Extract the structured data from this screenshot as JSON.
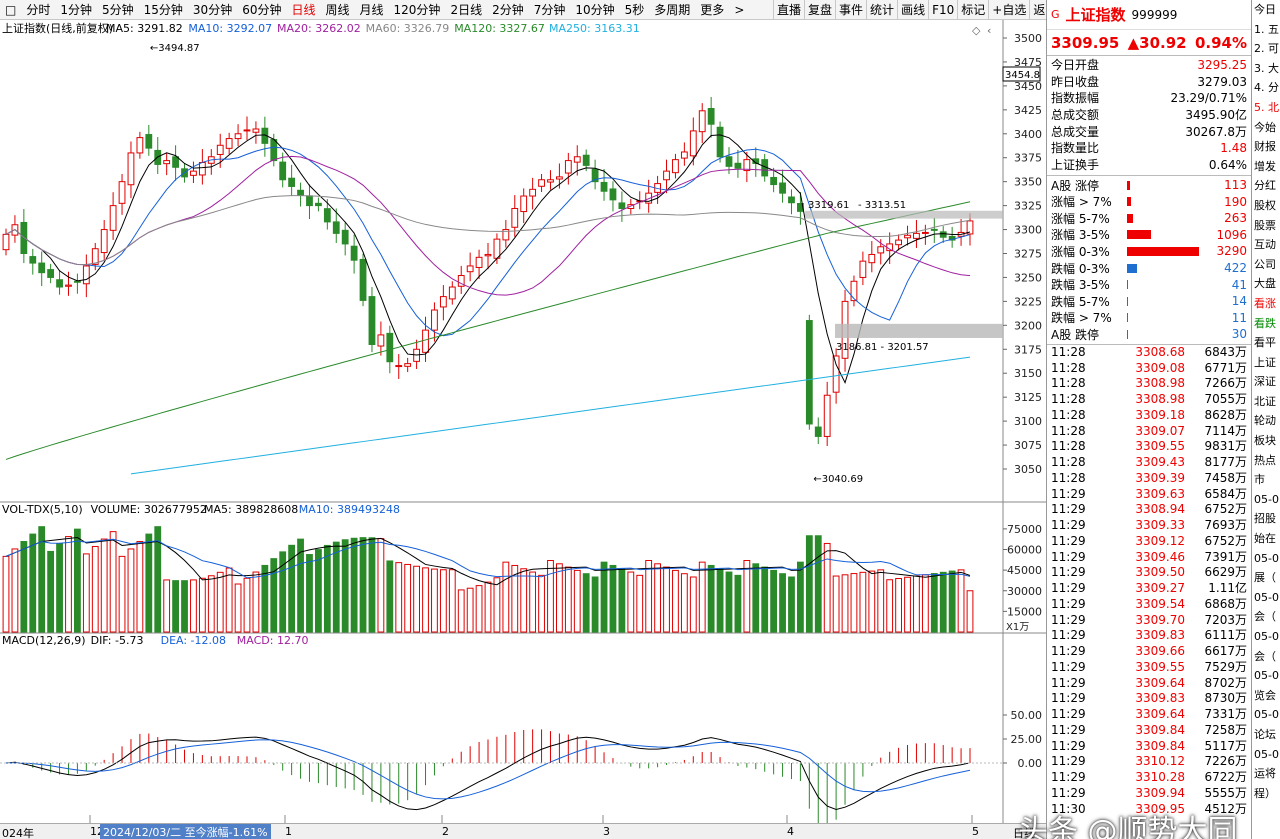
{
  "toolbar": {
    "items": [
      "分时",
      "1分钟",
      "5分钟",
      "15分钟",
      "30分钟",
      "60分钟",
      "日线",
      "周线",
      "月线",
      "120分钟",
      "2日线",
      "2分钟",
      "7分钟",
      "10分钟",
      "5秒",
      "多周期",
      "更多"
    ],
    "active": "日线",
    "more_arrow": ">",
    "right_buttons": [
      "直播",
      "复盘",
      "事件",
      "统计",
      "画线",
      "F10",
      "标记",
      "+自选",
      "返回"
    ]
  },
  "chart": {
    "title": "上证指数(日线,前复权)",
    "ma_legend": [
      {
        "label": "MA5: 3291.82",
        "color": "#000000"
      },
      {
        "label": "MA10: 3292.07",
        "color": "#1560d8"
      },
      {
        "label": "MA20: 3262.02",
        "color": "#a020a0"
      },
      {
        "label": "MA60: 3326.79",
        "color": "#888888"
      },
      {
        "label": "MA120: 3327.67",
        "color": "#2a8a2a"
      },
      {
        "label": "MA250: 3163.31",
        "color": "#20b0e0"
      }
    ],
    "price_ticks": [
      "3500",
      "3475",
      "3450",
      "3425",
      "3400",
      "3375",
      "3350",
      "3325",
      "3300",
      "3275",
      "3250",
      "3225",
      "3200",
      "3175",
      "3150",
      "3125",
      "3100",
      "3075",
      "3050"
    ],
    "current_price_label": "3454.8",
    "annotations": {
      "high": "3494.87",
      "low": "3040.69",
      "gap_up_left": "3319.61",
      "gap_up_right": "3313.51",
      "gap_down": "3186.81 - 3201.57"
    },
    "volume_legend": {
      "name": "VOL-TDX(5,10)",
      "volume": "VOLUME: 302677952",
      "ma5": "MA5: 389828608",
      "ma10": "MA10: 389493248"
    },
    "volume_ticks": [
      "75000",
      "60000",
      "45000",
      "30000",
      "15000"
    ],
    "volume_unit": "X1万",
    "macd_legend": {
      "name": "MACD(12,26,9)",
      "dif": "DIF: -5.73",
      "dea": "DEA: -12.08",
      "macd": "MACD: 12.70"
    },
    "macd_ticks": [
      "50.00",
      "25.00",
      "0.00"
    ]
  },
  "bottom_axis": {
    "labels": [
      "024年",
      "12",
      "1",
      "2",
      "3",
      "4",
      "5"
    ],
    "tooltip": "2024/12/03/二 至今涨幅-1.61%",
    "period": "日线"
  },
  "chart_data": {
    "type": "candlestick",
    "series_close": [
      3295,
      3305,
      3275,
      3265,
      3255,
      3250,
      3240,
      3242,
      3245,
      3262,
      3280,
      3300,
      3325,
      3350,
      3380,
      3396,
      3385,
      3368,
      3372,
      3365,
      3355,
      3361,
      3370,
      3376,
      3388,
      3395,
      3400,
      3404,
      3405,
      3390,
      3372,
      3352,
      3345,
      3336,
      3325,
      3325,
      3308,
      3296,
      3285,
      3268,
      3226,
      3180,
      3190,
      3162,
      3158,
      3160,
      3175,
      3195,
      3216,
      3230,
      3240,
      3252,
      3262,
      3271,
      3274,
      3290,
      3300,
      3322,
      3335,
      3342,
      3352,
      3352,
      3355,
      3372,
      3376,
      3367,
      3350,
      3340,
      3331,
      3322,
      3326,
      3330,
      3338,
      3348,
      3361,
      3373,
      3381,
      3403,
      3424,
      3410,
      3376,
      3366,
      3364,
      3373,
      3369,
      3356,
      3347,
      3338,
      3328,
      3319,
      3097,
      3084,
      3127,
      3168,
      3225,
      3246,
      3267,
      3274,
      3282,
      3285,
      3289,
      3294,
      3296,
      3297,
      3300,
      3292,
      3289,
      3297,
      3309
    ],
    "volume_unit": "万",
    "volume_ma5_last": 389828608,
    "volume_ma10_last": 389493248,
    "macd": {
      "dif": -5.73,
      "dea": -12.08,
      "macd": 12.7
    },
    "ylim": [
      3040,
      3510
    ]
  },
  "info": {
    "g": "G",
    "name": "上证指数",
    "code": "999999",
    "price": "3309.95",
    "change": "▲30.92",
    "pct": "0.94%",
    "rows": [
      {
        "k": "今日开盘",
        "v": "3295.25",
        "c": "red"
      },
      {
        "k": "昨日收盘",
        "v": "3279.03",
        "c": ""
      },
      {
        "k": "指数振幅",
        "v": "23.29/0.71%",
        "c": ""
      },
      {
        "k": "总成交额",
        "v": "3495.90亿",
        "c": ""
      },
      {
        "k": "总成交量",
        "v": "30267.8万",
        "c": ""
      },
      {
        "k": "指数量比",
        "v": "1.48",
        "c": "red"
      },
      {
        "k": "上证换手",
        "v": "0.64%",
        "c": ""
      }
    ],
    "breadth": [
      {
        "k": "A股 涨停",
        "v": "113",
        "w": 3,
        "c": "red"
      },
      {
        "k": "涨幅 > 7%",
        "v": "190",
        "w": 4,
        "c": "red"
      },
      {
        "k": "涨幅 5-7%",
        "v": "263",
        "w": 6,
        "c": "red"
      },
      {
        "k": "涨幅 3-5%",
        "v": "1096",
        "w": 24,
        "c": "red"
      },
      {
        "k": "涨幅 0-3%",
        "v": "3290",
        "w": 72,
        "c": "red"
      },
      {
        "k": "跌幅 0-3%",
        "v": "422",
        "w": 10,
        "c": "blue"
      },
      {
        "k": "跌幅 3-5%",
        "v": "41",
        "w": 1,
        "c": "blue"
      },
      {
        "k": "跌幅 5-7%",
        "v": "14",
        "w": 1,
        "c": "blue"
      },
      {
        "k": "跌幅 > 7%",
        "v": "11",
        "w": 1,
        "c": "blue"
      },
      {
        "k": "A股 跌停",
        "v": "30",
        "w": 1,
        "c": "blue"
      }
    ],
    "ticks": [
      {
        "t": "11:28",
        "p": "3308.68",
        "v": "6843万"
      },
      {
        "t": "11:28",
        "p": "3309.08",
        "v": "6771万"
      },
      {
        "t": "11:28",
        "p": "3308.98",
        "v": "7266万"
      },
      {
        "t": "11:28",
        "p": "3308.98",
        "v": "7055万"
      },
      {
        "t": "11:28",
        "p": "3309.18",
        "v": "8628万"
      },
      {
        "t": "11:28",
        "p": "3309.07",
        "v": "7114万"
      },
      {
        "t": "11:28",
        "p": "3309.55",
        "v": "9831万"
      },
      {
        "t": "11:28",
        "p": "3309.43",
        "v": "8177万"
      },
      {
        "t": "11:28",
        "p": "3309.39",
        "v": "7458万"
      },
      {
        "t": "11:29",
        "p": "3309.63",
        "v": "6584万"
      },
      {
        "t": "11:29",
        "p": "3308.94",
        "v": "6752万"
      },
      {
        "t": "11:29",
        "p": "3309.33",
        "v": "7693万"
      },
      {
        "t": "11:29",
        "p": "3309.12",
        "v": "6752万"
      },
      {
        "t": "11:29",
        "p": "3309.46",
        "v": "7391万"
      },
      {
        "t": "11:29",
        "p": "3309.50",
        "v": "6629万"
      },
      {
        "t": "11:29",
        "p": "3309.27",
        "v": "1.11亿"
      },
      {
        "t": "11:29",
        "p": "3309.54",
        "v": "6868万"
      },
      {
        "t": "11:29",
        "p": "3309.70",
        "v": "7203万"
      },
      {
        "t": "11:29",
        "p": "3309.83",
        "v": "6111万"
      },
      {
        "t": "11:29",
        "p": "3309.66",
        "v": "6617万"
      },
      {
        "t": "11:29",
        "p": "3309.55",
        "v": "7529万"
      },
      {
        "t": "11:29",
        "p": "3309.64",
        "v": "8702万"
      },
      {
        "t": "11:29",
        "p": "3309.83",
        "v": "8730万"
      },
      {
        "t": "11:29",
        "p": "3309.64",
        "v": "7331万"
      },
      {
        "t": "11:29",
        "p": "3309.84",
        "v": "7258万"
      },
      {
        "t": "11:29",
        "p": "3309.84",
        "v": "5117万"
      },
      {
        "t": "11:29",
        "p": "3310.12",
        "v": "7226万"
      },
      {
        "t": "11:29",
        "p": "3310.28",
        "v": "6722万"
      },
      {
        "t": "11:29",
        "p": "3309.94",
        "v": "5555万"
      },
      {
        "t": "11:30",
        "p": "3309.95",
        "v": "4512万"
      }
    ]
  },
  "strip": [
    {
      "t": "今日",
      "c": ""
    },
    {
      "t": "1. 五",
      "c": ""
    },
    {
      "t": "2. 可",
      "c": ""
    },
    {
      "t": "3. 大",
      "c": ""
    },
    {
      "t": "4. 分",
      "c": ""
    },
    {
      "t": "5. 北",
      "c": "red"
    },
    {
      "t": "今始",
      "c": ""
    },
    {
      "t": "财报",
      "c": ""
    },
    {
      "t": "增发",
      "c": ""
    },
    {
      "t": "分红",
      "c": ""
    },
    {
      "t": "股权",
      "c": ""
    },
    {
      "t": "股票",
      "c": ""
    },
    {
      "t": "互动",
      "c": ""
    },
    {
      "t": "公司",
      "c": ""
    },
    {
      "t": "大盘",
      "c": ""
    },
    {
      "t": "看涨",
      "c": "red"
    },
    {
      "t": "看跌",
      "c": "green"
    },
    {
      "t": "看平",
      "c": ""
    },
    {
      "t": "上证",
      "c": ""
    },
    {
      "t": "深证",
      "c": ""
    },
    {
      "t": "北证",
      "c": ""
    },
    {
      "t": "轮动",
      "c": ""
    },
    {
      "t": "板块",
      "c": ""
    },
    {
      "t": "热点",
      "c": ""
    },
    {
      "t": "市",
      "c": ""
    },
    {
      "t": "05-0",
      "c": ""
    },
    {
      "t": "招股",
      "c": ""
    },
    {
      "t": "始在",
      "c": ""
    },
    {
      "t": "05-0",
      "c": ""
    },
    {
      "t": "展（",
      "c": ""
    },
    {
      "t": "05-0",
      "c": ""
    },
    {
      "t": "会（",
      "c": ""
    },
    {
      "t": "05-0",
      "c": ""
    },
    {
      "t": "会（",
      "c": ""
    },
    {
      "t": "05-0",
      "c": ""
    },
    {
      "t": "览会",
      "c": ""
    },
    {
      "t": "05-0",
      "c": ""
    },
    {
      "t": "论坛",
      "c": ""
    },
    {
      "t": "05-0",
      "c": ""
    },
    {
      "t": "运将",
      "c": ""
    },
    {
      "t": "程）",
      "c": ""
    }
  ],
  "watermark": "头条 @顺势大同"
}
